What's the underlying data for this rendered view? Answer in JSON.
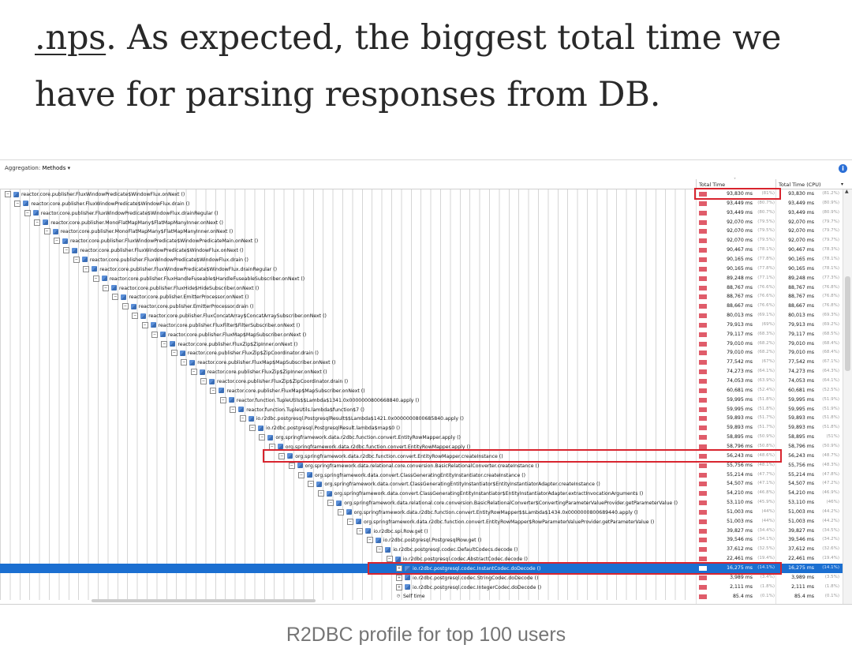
{
  "article": {
    "link_text": ".nps",
    "text_line1_rest": ". As expected, the biggest total time we",
    "text_line2": "have for parsing responses from DB."
  },
  "profiler": {
    "aggregation_label": "Aggregation:",
    "aggregation_value": "Methods",
    "col_total_time": "Total Time",
    "col_total_time_cpu": "Total Time (CPU)",
    "rows": [
      {
        "depth": 0,
        "method": "reactor.core.publisher.FluxWindowPredicate$WindowFlux.onNext ()",
        "t1": "93,830 ms",
        "p1": "(81%)",
        "t2": "93,830 ms",
        "p2": "(81.2%)"
      },
      {
        "depth": 1,
        "method": "reactor.core.publisher.FluxWindowPredicate$WindowFlux.drain ()",
        "t1": "93,449 ms",
        "p1": "(80.7%)",
        "t2": "93,449 ms",
        "p2": "(80.9%)"
      },
      {
        "depth": 2,
        "method": "reactor.core.publisher.FluxWindowPredicate$WindowFlux.drainRegular ()",
        "t1": "93,449 ms",
        "p1": "(80.7%)",
        "t2": "93,449 ms",
        "p2": "(80.9%)"
      },
      {
        "depth": 3,
        "method": "reactor.core.publisher.MonoFlatMapMany$FlatMapManyInner.onNext ()",
        "t1": "92,070 ms",
        "p1": "(79.5%)",
        "t2": "92,070 ms",
        "p2": "(79.7%)"
      },
      {
        "depth": 4,
        "method": "reactor.core.publisher.MonoFlatMapMany$FlatMapManyInner.onNext ()",
        "t1": "92,070 ms",
        "p1": "(79.5%)",
        "t2": "92,070 ms",
        "p2": "(79.7%)"
      },
      {
        "depth": 5,
        "method": "reactor.core.publisher.FluxWindowPredicate$WindowPredicateMain.onNext ()",
        "t1": "92,070 ms",
        "p1": "(79.5%)",
        "t2": "92,070 ms",
        "p2": "(79.7%)"
      },
      {
        "depth": 6,
        "method": "reactor.core.publisher.FluxWindowPredicate$WindowFlux.onNext ()",
        "t1": "90,467 ms",
        "p1": "(78.1%)",
        "t2": "90,467 ms",
        "p2": "(78.3%)"
      },
      {
        "depth": 7,
        "method": "reactor.core.publisher.FluxWindowPredicate$WindowFlux.drain ()",
        "t1": "90,165 ms",
        "p1": "(77.8%)",
        "t2": "90,165 ms",
        "p2": "(78.1%)"
      },
      {
        "depth": 8,
        "method": "reactor.core.publisher.FluxWindowPredicate$WindowFlux.drainRegular ()",
        "t1": "90,165 ms",
        "p1": "(77.8%)",
        "t2": "90,165 ms",
        "p2": "(78.1%)"
      },
      {
        "depth": 9,
        "method": "reactor.core.publisher.FluxHandleFuseable$HandleFuseableSubscriber.onNext ()",
        "t1": "89,248 ms",
        "p1": "(77.1%)",
        "t2": "89,248 ms",
        "p2": "(77.3%)"
      },
      {
        "depth": 10,
        "method": "reactor.core.publisher.FluxHide$HideSubscriber.onNext ()",
        "t1": "88,767 ms",
        "p1": "(76.6%)",
        "t2": "88,767 ms",
        "p2": "(76.8%)"
      },
      {
        "depth": 11,
        "method": "reactor.core.publisher.EmitterProcessor.onNext ()",
        "t1": "88,767 ms",
        "p1": "(76.6%)",
        "t2": "88,767 ms",
        "p2": "(76.8%)"
      },
      {
        "depth": 12,
        "method": "reactor.core.publisher.EmitterProcessor.drain ()",
        "t1": "88,667 ms",
        "p1": "(76.6%)",
        "t2": "88,667 ms",
        "p2": "(76.8%)"
      },
      {
        "depth": 13,
        "method": "reactor.core.publisher.FluxConcatArray$ConcatArraySubscriber.onNext ()",
        "t1": "80,013 ms",
        "p1": "(69.1%)",
        "t2": "80,013 ms",
        "p2": "(69.3%)"
      },
      {
        "depth": 14,
        "method": "reactor.core.publisher.FluxFilter$FilterSubscriber.onNext ()",
        "t1": "79,913 ms",
        "p1": "(69%)",
        "t2": "79,913 ms",
        "p2": "(69.2%)"
      },
      {
        "depth": 15,
        "method": "reactor.core.publisher.FluxMap$MapSubscriber.onNext ()",
        "t1": "79,117 ms",
        "p1": "(68.3%)",
        "t2": "79,117 ms",
        "p2": "(68.5%)"
      },
      {
        "depth": 16,
        "method": "reactor.core.publisher.FluxZip$ZipInner.onNext ()",
        "t1": "79,010 ms",
        "p1": "(68.2%)",
        "t2": "79,010 ms",
        "p2": "(68.4%)"
      },
      {
        "depth": 17,
        "method": "reactor.core.publisher.FluxZip$ZipCoordinator.drain ()",
        "t1": "79,010 ms",
        "p1": "(68.2%)",
        "t2": "79,010 ms",
        "p2": "(68.4%)"
      },
      {
        "depth": 18,
        "method": "reactor.core.publisher.FluxMap$MapSubscriber.onNext ()",
        "t1": "77,542 ms",
        "p1": "(67%)",
        "t2": "77,542 ms",
        "p2": "(67.1%)"
      },
      {
        "depth": 19,
        "method": "reactor.core.publisher.FluxZip$ZipInner.onNext ()",
        "t1": "74,273 ms",
        "p1": "(64.1%)",
        "t2": "74,273 ms",
        "p2": "(64.3%)"
      },
      {
        "depth": 20,
        "method": "reactor.core.publisher.FluxZip$ZipCoordinator.drain ()",
        "t1": "74,053 ms",
        "p1": "(63.9%)",
        "t2": "74,053 ms",
        "p2": "(64.1%)"
      },
      {
        "depth": 21,
        "method": "reactor.core.publisher.FluxMap$MapSubscriber.onNext ()",
        "t1": "60,681 ms",
        "p1": "(52.4%)",
        "t2": "60,681 ms",
        "p2": "(52.5%)"
      },
      {
        "depth": 22,
        "method": "reactor.function.TupleUtils$$Lambda$1341.0x0000000800668840.apply ()",
        "t1": "59,995 ms",
        "p1": "(51.8%)",
        "t2": "59,995 ms",
        "p2": "(51.9%)"
      },
      {
        "depth": 23,
        "method": "reactor.function.TupleUtils.lambda$function$7 ()",
        "t1": "59,995 ms",
        "p1": "(51.8%)",
        "t2": "59,995 ms",
        "p2": "(51.9%)"
      },
      {
        "depth": 24,
        "method": "io.r2dbc.postgresql.PostgresqlResult$$Lambda$1421.0x0000000800685840.apply ()",
        "t1": "59,893 ms",
        "p1": "(51.7%)",
        "t2": "59,893 ms",
        "p2": "(51.8%)"
      },
      {
        "depth": 25,
        "method": "io.r2dbc.postgresql.PostgresqlResult.lambda$map$0 ()",
        "t1": "59,893 ms",
        "p1": "(51.7%)",
        "t2": "59,893 ms",
        "p2": "(51.8%)"
      },
      {
        "depth": 26,
        "method": "org.springframework.data.r2dbc.function.convert.EntityRowMapper.apply ()",
        "t1": "58,895 ms",
        "p1": "(50.9%)",
        "t2": "58,895 ms",
        "p2": "(51%)"
      },
      {
        "depth": 27,
        "method": "org.springframework.data.r2dbc.function.convert.EntityRowMapper.apply ()",
        "t1": "58,796 ms",
        "p1": "(50.8%)",
        "t2": "58,796 ms",
        "p2": "(50.9%)"
      },
      {
        "depth": 28,
        "method": "org.springframework.data.r2dbc.function.convert.EntityRowMapper.createInstance ()",
        "t1": "56,243 ms",
        "p1": "(48.6%)",
        "t2": "56,243 ms",
        "p2": "(48.7%)"
      },
      {
        "depth": 29,
        "method": "org.springframework.data.relational.core.conversion.BasicRelationalConverter.createInstance ()",
        "t1": "55,756 ms",
        "p1": "(48.1%)",
        "t2": "55,756 ms",
        "p2": "(48.3%)"
      },
      {
        "depth": 30,
        "method": "org.springframework.data.convert.ClassGeneratingEntityInstantiator.createInstance ()",
        "t1": "55,214 ms",
        "p1": "(47.7%)",
        "t2": "55,214 ms",
        "p2": "(47.8%)"
      },
      {
        "depth": 31,
        "method": "org.springframework.data.convert.ClassGeneratingEntityInstantiator$EntityInstantiatorAdapter.createInstance ()",
        "t1": "54,507 ms",
        "p1": "(47.1%)",
        "t2": "54,507 ms",
        "p2": "(47.2%)"
      },
      {
        "depth": 32,
        "method": "org.springframework.data.convert.ClassGeneratingEntityInstantiator$EntityInstantiatorAdapter.extractInvocationArguments ()",
        "t1": "54,210 ms",
        "p1": "(46.8%)",
        "t2": "54,210 ms",
        "p2": "(46.9%)"
      },
      {
        "depth": 33,
        "method": "org.springframework.data.relational.core.conversion.BasicRelationalConverter$ConvertingParameterValueProvider.getParameterValue ()",
        "t1": "53,110 ms",
        "p1": "(45.9%)",
        "t2": "53,110 ms",
        "p2": "(46%)"
      },
      {
        "depth": 34,
        "method": "org.springframework.data.r2dbc.function.convert.EntityRowMapper$$Lambda$1434.0x0000000800689440.apply ()",
        "t1": "51,003 ms",
        "p1": "(44%)",
        "t2": "51,003 ms",
        "p2": "(44.2%)"
      },
      {
        "depth": 35,
        "method": "org.springframework.data.r2dbc.function.convert.EntityRowMapper$RowParameterValueProvider.getParameterValue ()",
        "t1": "51,003 ms",
        "p1": "(44%)",
        "t2": "51,003 ms",
        "p2": "(44.2%)"
      },
      {
        "depth": 36,
        "method": "io.r2dbc.spi.Row.get ()",
        "t1": "39,827 ms",
        "p1": "(34.4%)",
        "t2": "39,827 ms",
        "p2": "(34.5%)"
      },
      {
        "depth": 37,
        "method": "io.r2dbc.postgresql.PostgresqlRow.get ()",
        "t1": "39,546 ms",
        "p1": "(34.1%)",
        "t2": "39,546 ms",
        "p2": "(34.2%)"
      },
      {
        "depth": 38,
        "method": "io.r2dbc.postgresql.codec.DefaultCodecs.decode ()",
        "t1": "37,612 ms",
        "p1": "(32.5%)",
        "t2": "37,612 ms",
        "p2": "(32.6%)"
      },
      {
        "depth": 39,
        "method": "io.r2dbc.postgresql.codec.AbstractCodec.decode ()",
        "t1": "22,461 ms",
        "p1": "(19.4%)",
        "t2": "22,461 ms",
        "p2": "(19.4%)"
      },
      {
        "depth": 40,
        "method": "io.r2dbc.postgresql.codec.InstantCodec.doDecode ()",
        "t1": "16,275 ms",
        "p1": "(14.1%)",
        "t2": "16,275 ms",
        "p2": "(14.1%)",
        "selected": true
      },
      {
        "depth": 40,
        "method": "io.r2dbc.postgresql.codec.StringCodec.doDecode ()",
        "t1": "3,989 ms",
        "p1": "(3.4%)",
        "t2": "3,989 ms",
        "p2": "(3.5%)"
      },
      {
        "depth": 40,
        "method": "io.r2dbc.postgresql.codec.IntegerCodec.doDecode ()",
        "t1": "2,111 ms",
        "p1": "(1.8%)",
        "t2": "2,111 ms",
        "p2": "(1.8%)"
      },
      {
        "depth": 40,
        "method": "Self time",
        "t1": "85.4 ms",
        "p1": "(0.1%)",
        "t2": "85.4 ms",
        "p2": "(0.1%)",
        "self": true
      }
    ]
  },
  "caption": "R2DBC profile for top 100 users"
}
